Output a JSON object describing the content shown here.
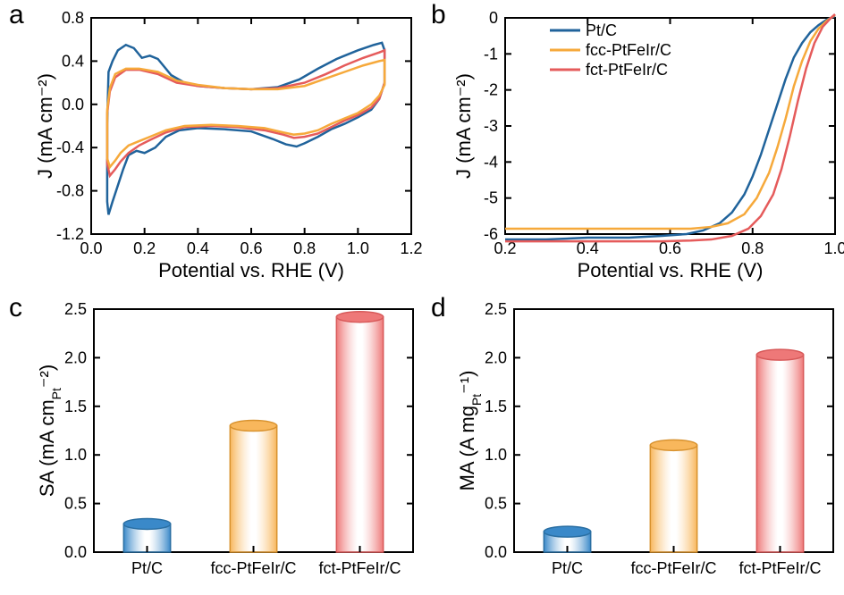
{
  "background_color": "#ffffff",
  "colors": {
    "ptc": "#20639b",
    "fcc": "#f6a93b",
    "fct": "#e55b5b",
    "bar_ptc_fill": "#3a89c9",
    "bar_ptc_stroke": "#2a6fa3",
    "bar_fcc_fill": "#f8b75c",
    "bar_fcc_stroke": "#d8922e",
    "bar_fct_fill": "#ee7878",
    "bar_fct_stroke": "#d85a5a"
  },
  "fonts": {
    "panel_label_size": 30,
    "tick_size": 18,
    "axis_title_size": 22,
    "legend_size": 18
  },
  "panel_a": {
    "label": "a",
    "x_title": "Potential vs. RHE (V)",
    "y_title": "J (mA cm⁻²)",
    "xlim": [
      0.0,
      1.2
    ],
    "ylim": [
      -1.2,
      0.8
    ],
    "xticks": [
      0.0,
      0.2,
      0.4,
      0.6,
      0.8,
      1.0,
      1.2
    ],
    "yticks": [
      -1.2,
      -0.8,
      -0.4,
      0.0,
      0.4,
      0.8
    ],
    "series": {
      "ptc": [
        [
          0.06,
          -0.18
        ],
        [
          0.065,
          0.3
        ],
        [
          0.08,
          0.4
        ],
        [
          0.1,
          0.5
        ],
        [
          0.13,
          0.55
        ],
        [
          0.16,
          0.52
        ],
        [
          0.19,
          0.43
        ],
        [
          0.22,
          0.45
        ],
        [
          0.25,
          0.42
        ],
        [
          0.3,
          0.27
        ],
        [
          0.35,
          0.2
        ],
        [
          0.4,
          0.17
        ],
        [
          0.5,
          0.15
        ],
        [
          0.6,
          0.14
        ],
        [
          0.7,
          0.16
        ],
        [
          0.78,
          0.23
        ],
        [
          0.85,
          0.33
        ],
        [
          0.92,
          0.42
        ],
        [
          1.0,
          0.5
        ],
        [
          1.06,
          0.55
        ],
        [
          1.09,
          0.57
        ],
        [
          1.1,
          0.5
        ],
        [
          1.1,
          0.2
        ],
        [
          1.08,
          0.05
        ],
        [
          1.05,
          -0.05
        ],
        [
          1.0,
          -0.12
        ],
        [
          0.95,
          -0.18
        ],
        [
          0.9,
          -0.23
        ],
        [
          0.85,
          -0.3
        ],
        [
          0.8,
          -0.36
        ],
        [
          0.77,
          -0.39
        ],
        [
          0.73,
          -0.37
        ],
        [
          0.68,
          -0.32
        ],
        [
          0.6,
          -0.25
        ],
        [
          0.5,
          -0.23
        ],
        [
          0.4,
          -0.22
        ],
        [
          0.33,
          -0.24
        ],
        [
          0.28,
          -0.3
        ],
        [
          0.24,
          -0.4
        ],
        [
          0.2,
          -0.45
        ],
        [
          0.17,
          -0.43
        ],
        [
          0.14,
          -0.47
        ],
        [
          0.12,
          -0.6
        ],
        [
          0.1,
          -0.75
        ],
        [
          0.08,
          -0.9
        ],
        [
          0.065,
          -1.02
        ],
        [
          0.06,
          -0.9
        ],
        [
          0.06,
          -0.5
        ],
        [
          0.06,
          -0.18
        ]
      ],
      "fcc": [
        [
          0.06,
          -0.05
        ],
        [
          0.07,
          0.15
        ],
        [
          0.09,
          0.28
        ],
        [
          0.13,
          0.33
        ],
        [
          0.18,
          0.33
        ],
        [
          0.25,
          0.3
        ],
        [
          0.32,
          0.22
        ],
        [
          0.4,
          0.18
        ],
        [
          0.5,
          0.15
        ],
        [
          0.6,
          0.14
        ],
        [
          0.7,
          0.14
        ],
        [
          0.8,
          0.17
        ],
        [
          0.88,
          0.24
        ],
        [
          0.95,
          0.3
        ],
        [
          1.02,
          0.36
        ],
        [
          1.08,
          0.4
        ],
        [
          1.1,
          0.41
        ],
        [
          1.1,
          0.18
        ],
        [
          1.08,
          0.08
        ],
        [
          1.05,
          0.0
        ],
        [
          1.0,
          -0.08
        ],
        [
          0.95,
          -0.13
        ],
        [
          0.9,
          -0.18
        ],
        [
          0.85,
          -0.24
        ],
        [
          0.8,
          -0.27
        ],
        [
          0.76,
          -0.28
        ],
        [
          0.72,
          -0.26
        ],
        [
          0.65,
          -0.22
        ],
        [
          0.55,
          -0.2
        ],
        [
          0.45,
          -0.19
        ],
        [
          0.35,
          -0.2
        ],
        [
          0.28,
          -0.24
        ],
        [
          0.22,
          -0.3
        ],
        [
          0.18,
          -0.34
        ],
        [
          0.14,
          -0.38
        ],
        [
          0.11,
          -0.45
        ],
        [
          0.09,
          -0.52
        ],
        [
          0.07,
          -0.58
        ],
        [
          0.06,
          -0.5
        ],
        [
          0.06,
          -0.25
        ],
        [
          0.06,
          -0.05
        ]
      ],
      "fct": [
        [
          0.06,
          -0.08
        ],
        [
          0.07,
          0.12
        ],
        [
          0.09,
          0.25
        ],
        [
          0.13,
          0.32
        ],
        [
          0.18,
          0.32
        ],
        [
          0.25,
          0.28
        ],
        [
          0.32,
          0.2
        ],
        [
          0.4,
          0.17
        ],
        [
          0.5,
          0.15
        ],
        [
          0.6,
          0.14
        ],
        [
          0.7,
          0.15
        ],
        [
          0.8,
          0.2
        ],
        [
          0.88,
          0.28
        ],
        [
          0.95,
          0.36
        ],
        [
          1.02,
          0.43
        ],
        [
          1.08,
          0.48
        ],
        [
          1.1,
          0.5
        ],
        [
          1.1,
          0.2
        ],
        [
          1.08,
          0.05
        ],
        [
          1.05,
          -0.03
        ],
        [
          1.0,
          -0.1
        ],
        [
          0.95,
          -0.15
        ],
        [
          0.9,
          -0.21
        ],
        [
          0.85,
          -0.27
        ],
        [
          0.8,
          -0.3
        ],
        [
          0.76,
          -0.31
        ],
        [
          0.72,
          -0.28
        ],
        [
          0.65,
          -0.24
        ],
        [
          0.55,
          -0.21
        ],
        [
          0.45,
          -0.2
        ],
        [
          0.35,
          -0.21
        ],
        [
          0.28,
          -0.26
        ],
        [
          0.22,
          -0.33
        ],
        [
          0.18,
          -0.38
        ],
        [
          0.14,
          -0.45
        ],
        [
          0.11,
          -0.53
        ],
        [
          0.09,
          -0.6
        ],
        [
          0.07,
          -0.66
        ],
        [
          0.06,
          -0.55
        ],
        [
          0.06,
          -0.3
        ],
        [
          0.06,
          -0.08
        ]
      ]
    }
  },
  "panel_b": {
    "label": "b",
    "x_title": "Potential vs. RHE (V)",
    "y_title": "J (mA cm⁻²)",
    "xlim": [
      0.2,
      1.0
    ],
    "ylim": [
      -6,
      0
    ],
    "xticks": [
      0.2,
      0.4,
      0.6,
      0.8,
      1.0
    ],
    "yticks": [
      -6,
      -5,
      -4,
      -3,
      -2,
      -1,
      0
    ],
    "legend": {
      "ptc": "Pt/C",
      "fcc": "fcc-PtFeIr/C",
      "fct": "fct-PtFeIr/C"
    },
    "series": {
      "ptc": [
        [
          0.2,
          -6.15
        ],
        [
          0.3,
          -6.15
        ],
        [
          0.4,
          -6.1
        ],
        [
          0.5,
          -6.1
        ],
        [
          0.58,
          -6.05
        ],
        [
          0.64,
          -6.0
        ],
        [
          0.68,
          -5.9
        ],
        [
          0.72,
          -5.7
        ],
        [
          0.75,
          -5.4
        ],
        [
          0.78,
          -4.9
        ],
        [
          0.8,
          -4.4
        ],
        [
          0.82,
          -3.8
        ],
        [
          0.84,
          -3.1
        ],
        [
          0.86,
          -2.4
        ],
        [
          0.88,
          -1.7
        ],
        [
          0.9,
          -1.1
        ],
        [
          0.92,
          -0.7
        ],
        [
          0.94,
          -0.4
        ],
        [
          0.96,
          -0.2
        ],
        [
          0.98,
          -0.05
        ],
        [
          1.0,
          0.05
        ]
      ],
      "fcc": [
        [
          0.2,
          -5.85
        ],
        [
          0.3,
          -5.85
        ],
        [
          0.4,
          -5.85
        ],
        [
          0.5,
          -5.85
        ],
        [
          0.58,
          -5.85
        ],
        [
          0.65,
          -5.85
        ],
        [
          0.7,
          -5.8
        ],
        [
          0.74,
          -5.7
        ],
        [
          0.78,
          -5.45
        ],
        [
          0.81,
          -5.0
        ],
        [
          0.84,
          -4.3
        ],
        [
          0.86,
          -3.6
        ],
        [
          0.88,
          -2.8
        ],
        [
          0.9,
          -1.9
        ],
        [
          0.92,
          -1.2
        ],
        [
          0.94,
          -0.65
        ],
        [
          0.96,
          -0.3
        ],
        [
          0.98,
          -0.08
        ],
        [
          1.0,
          0.08
        ]
      ],
      "fct": [
        [
          0.2,
          -6.2
        ],
        [
          0.3,
          -6.2
        ],
        [
          0.4,
          -6.2
        ],
        [
          0.5,
          -6.2
        ],
        [
          0.58,
          -6.2
        ],
        [
          0.65,
          -6.18
        ],
        [
          0.7,
          -6.15
        ],
        [
          0.75,
          -6.05
        ],
        [
          0.79,
          -5.85
        ],
        [
          0.82,
          -5.5
        ],
        [
          0.85,
          -4.9
        ],
        [
          0.87,
          -4.2
        ],
        [
          0.89,
          -3.3
        ],
        [
          0.91,
          -2.3
        ],
        [
          0.93,
          -1.4
        ],
        [
          0.95,
          -0.7
        ],
        [
          0.97,
          -0.25
        ],
        [
          0.99,
          0.0
        ],
        [
          1.0,
          0.1
        ]
      ]
    }
  },
  "panel_c": {
    "label": "c",
    "y_title": "SA (mA cm_{Pt}⁻²)",
    "ylim": [
      0.0,
      2.5
    ],
    "yticks": [
      0.0,
      0.5,
      1.0,
      1.5,
      2.0,
      2.5
    ],
    "categories": [
      "Pt/C",
      "fcc-PtFeIr/C",
      "fct-PtFeIr/C"
    ],
    "values": [
      0.29,
      1.3,
      2.42
    ],
    "bar_width": 0.22
  },
  "panel_d": {
    "label": "d",
    "y_title": "MA (A mg_{Pt}⁻¹)",
    "ylim": [
      0.0,
      2.5
    ],
    "yticks": [
      0.0,
      0.5,
      1.0,
      1.5,
      2.0,
      2.5
    ],
    "categories": [
      "Pt/C",
      "fcc-PtFeIr/C",
      "fct-PtFeIr/C"
    ],
    "values": [
      0.21,
      1.1,
      2.03
    ],
    "bar_width": 0.22
  }
}
